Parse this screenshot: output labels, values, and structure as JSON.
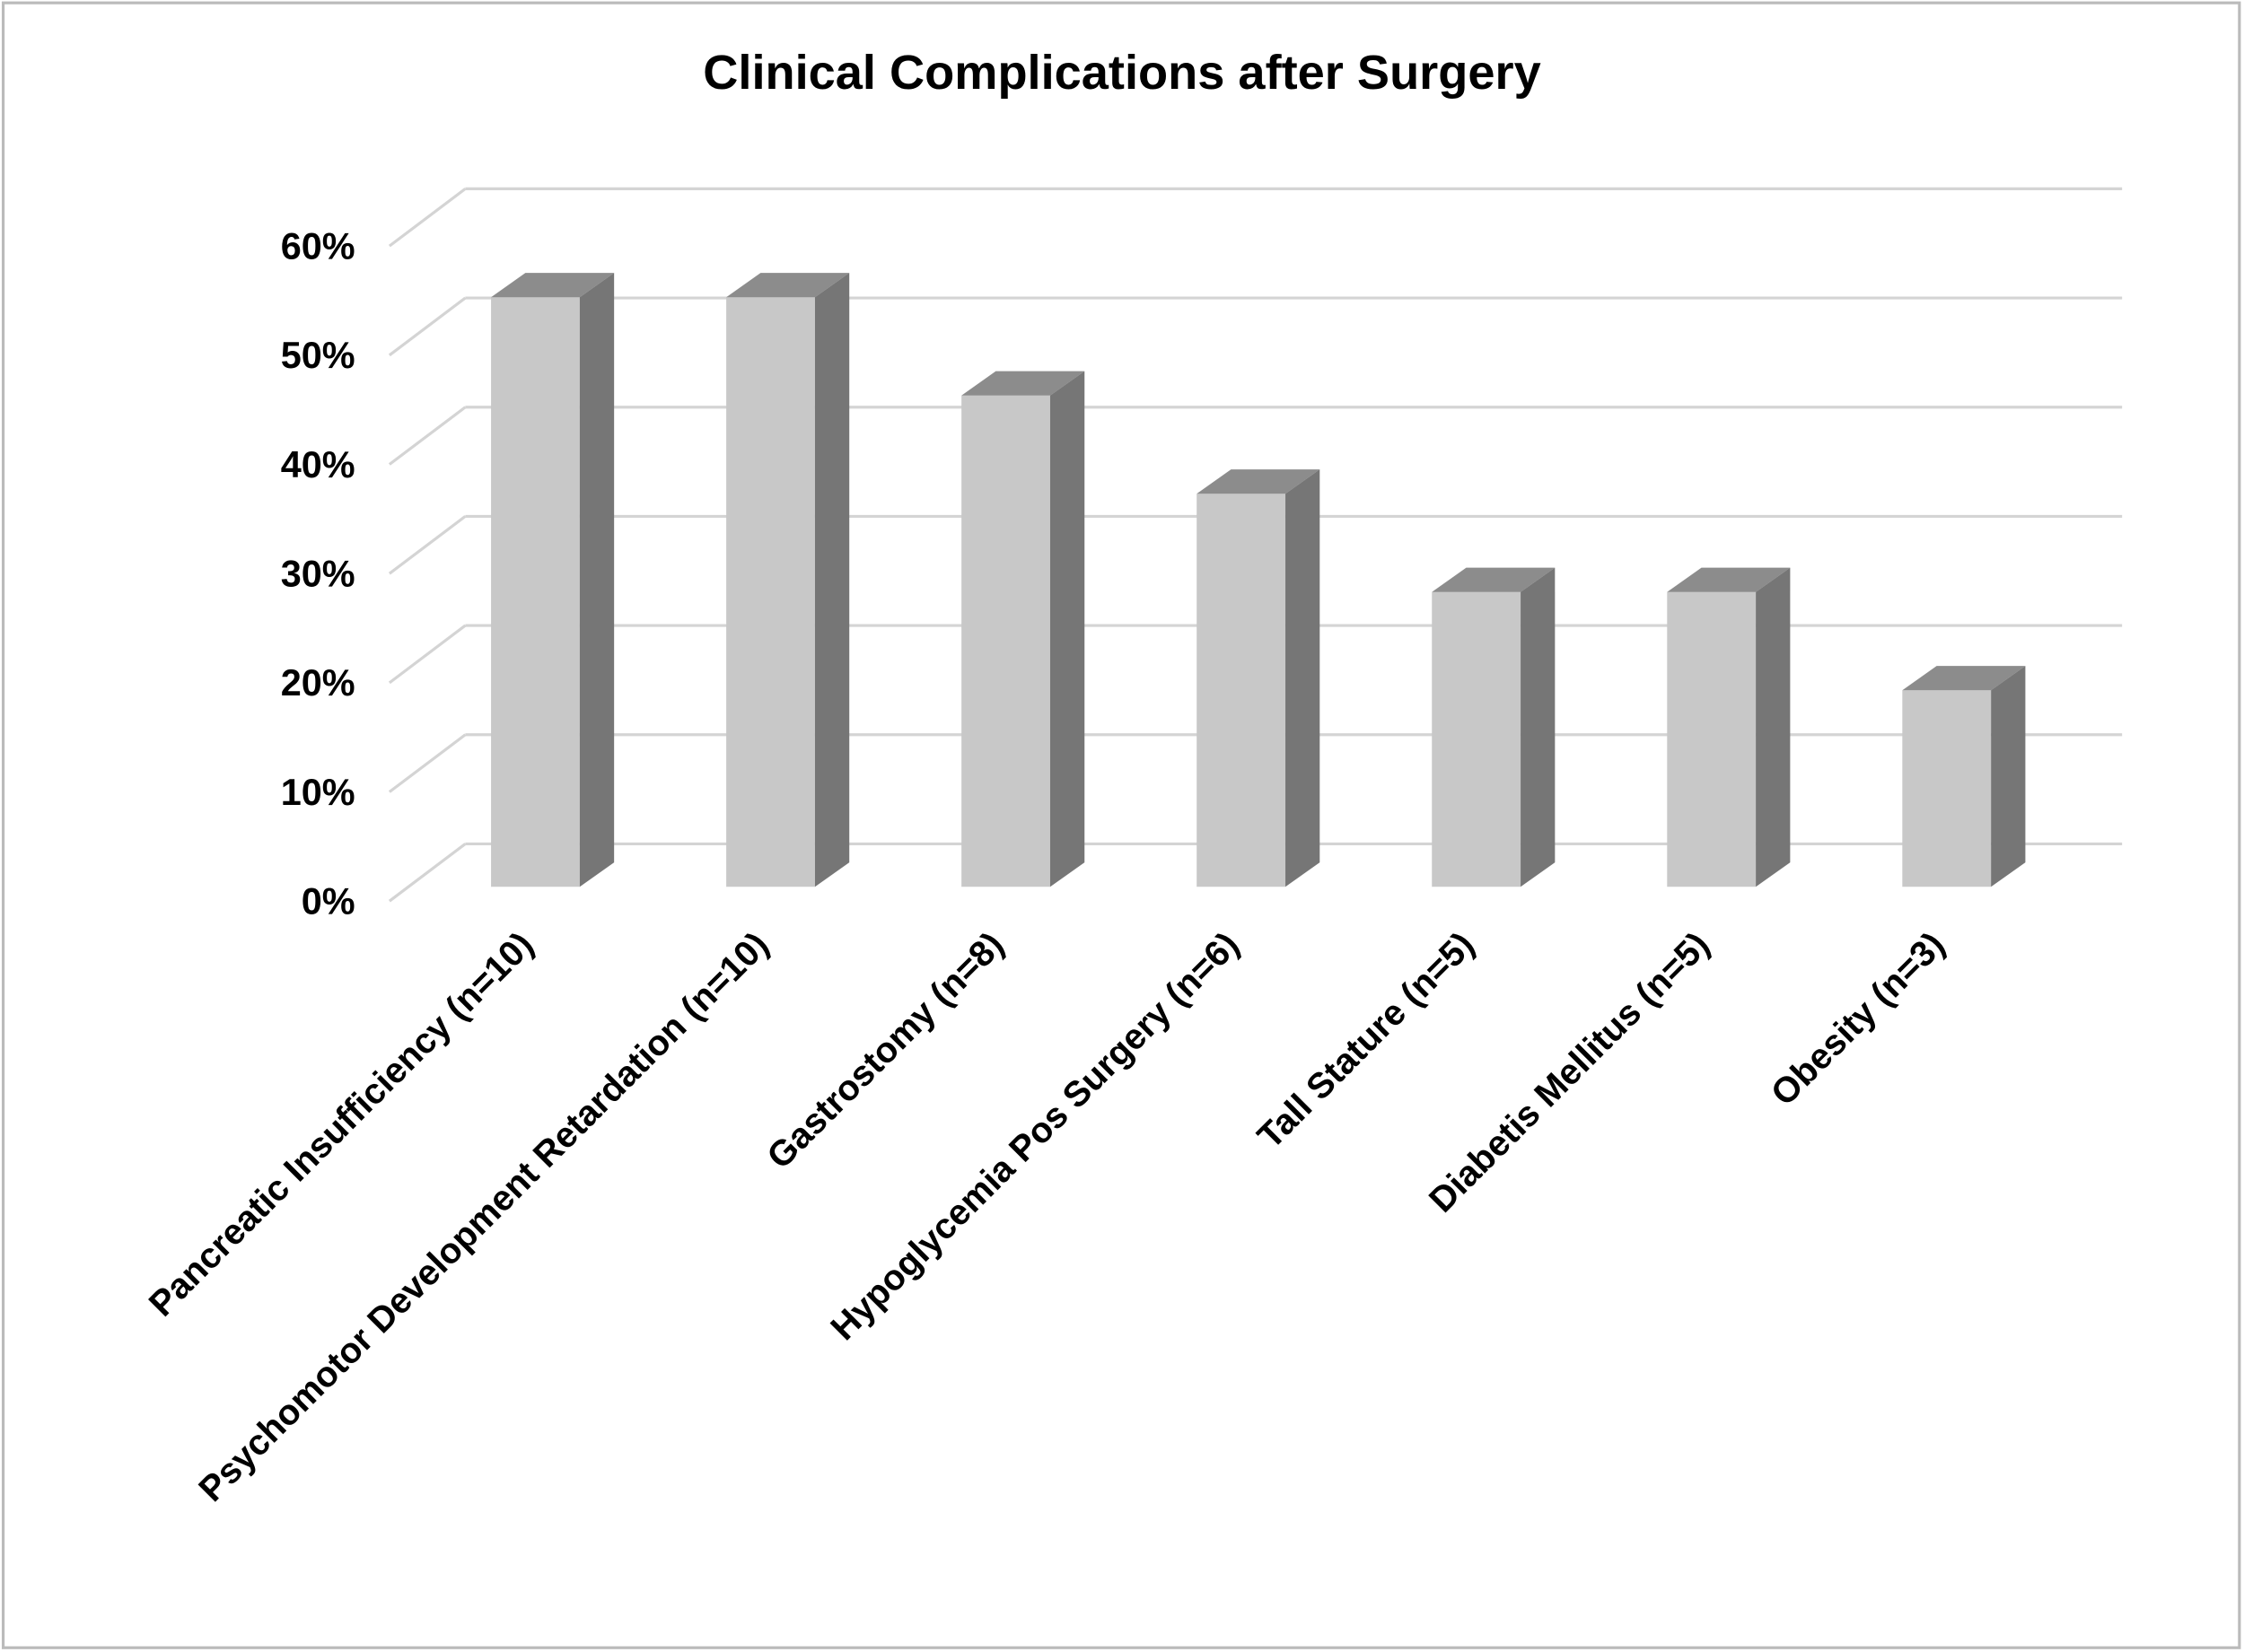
{
  "chart_data": {
    "type": "bar3d",
    "title": "Clinical Complications after Surgery",
    "categories": [
      "Pancreatic Insufficiency (n=10)",
      "Psychomotor Development Retardation (n=10)",
      "Gastrostomy (n=8)",
      "Hypoglycemia Pos Surgery (n=6)",
      "Tall Stature (n=5)",
      "Diabetis Mellitus (n=5)",
      "Obesity (n=3)"
    ],
    "values": [
      54,
      54,
      45,
      36,
      27,
      27,
      18
    ],
    "color": "#c8c8c8",
    "ylim": [
      0,
      60
    ],
    "yticks": [
      {
        "value": 0,
        "label": "0%"
      },
      {
        "value": 10,
        "label": "10%"
      },
      {
        "value": 20,
        "label": "20%"
      },
      {
        "value": 30,
        "label": "30%"
      },
      {
        "value": 40,
        "label": "40%"
      },
      {
        "value": 50,
        "label": "50%"
      },
      {
        "value": 60,
        "label": "60%"
      }
    ],
    "grid": true
  }
}
